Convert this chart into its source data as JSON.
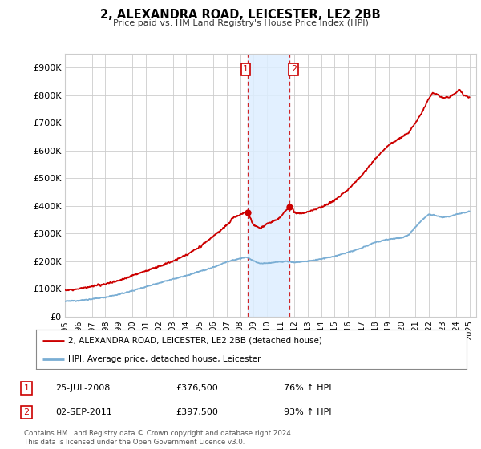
{
  "title": "2, ALEXANDRA ROAD, LEICESTER, LE2 2BB",
  "subtitle": "Price paid vs. HM Land Registry's House Price Index (HPI)",
  "yticks": [
    0,
    100000,
    200000,
    300000,
    400000,
    500000,
    600000,
    700000,
    800000,
    900000
  ],
  "ytick_labels": [
    "£0",
    "£100K",
    "£200K",
    "£300K",
    "£400K",
    "£500K",
    "£600K",
    "£700K",
    "£800K",
    "£900K"
  ],
  "ylim": [
    0,
    950000
  ],
  "xlim_start": 1995.0,
  "xlim_end": 2025.5,
  "xtick_years": [
    1995,
    1996,
    1997,
    1998,
    1999,
    2000,
    2001,
    2002,
    2003,
    2004,
    2005,
    2006,
    2007,
    2008,
    2009,
    2010,
    2011,
    2012,
    2013,
    2014,
    2015,
    2016,
    2017,
    2018,
    2019,
    2020,
    2021,
    2022,
    2023,
    2024,
    2025
  ],
  "property_color": "#cc0000",
  "hpi_color": "#7aaed4",
  "marker_sale1_x": 2008.56,
  "marker_sale1_y": 376500,
  "marker_sale2_x": 2011.67,
  "marker_sale2_y": 397500,
  "vline1_x": 2008.56,
  "vline2_x": 2011.67,
  "shade_color": "#ddeeff",
  "legend_property": "2, ALEXANDRA ROAD, LEICESTER, LE2 2BB (detached house)",
  "legend_hpi": "HPI: Average price, detached house, Leicester",
  "transaction1_date": "25-JUL-2008",
  "transaction1_price": "£376,500",
  "transaction1_hpi": "76% ↑ HPI",
  "transaction2_date": "02-SEP-2011",
  "transaction2_price": "£397,500",
  "transaction2_hpi": "93% ↑ HPI",
  "footnote": "Contains HM Land Registry data © Crown copyright and database right 2024.\nThis data is licensed under the Open Government Licence v3.0.",
  "background_color": "#ffffff",
  "grid_color": "#cccccc"
}
